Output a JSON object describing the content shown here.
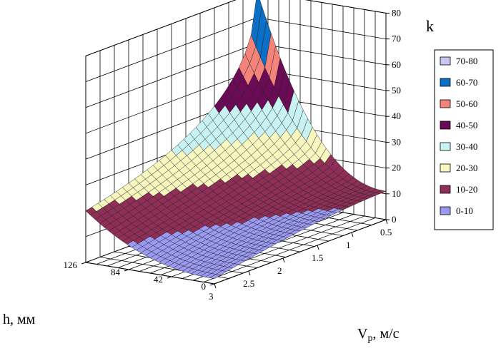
{
  "chart_data": {
    "type": "surface",
    "title": "",
    "xlabel": "h, мм",
    "ylabel_main": "V",
    "ylabel_sub": "p",
    "ylabel_unit": ", м/с",
    "zlabel": "k",
    "h_ticks": [
      "0",
      "42",
      "84",
      "126"
    ],
    "v_ticks": [
      "0.5",
      "1",
      "1.5",
      "2",
      "2.5",
      "3"
    ],
    "z_ticks": [
      "0",
      "10",
      "20",
      "30",
      "40",
      "50",
      "60",
      "70",
      "80"
    ],
    "h_range": [
      0,
      126
    ],
    "v_range": [
      0.5,
      3
    ],
    "z_range": [
      0,
      80
    ],
    "grid": true,
    "legend_position": "right",
    "legend": [
      {
        "label": "70-80",
        "color": "#c8c8ef"
      },
      {
        "label": "60-70",
        "color": "#0a6fc6"
      },
      {
        "label": "50-60",
        "color": "#f4847a"
      },
      {
        "label": "40-50",
        "color": "#6b0a55"
      },
      {
        "label": "30-40",
        "color": "#c9f3f3"
      },
      {
        "label": "20-30",
        "color": "#f7f7bf"
      },
      {
        "label": "10-20",
        "color": "#8f2e57"
      },
      {
        "label": "0-10",
        "color": "#9a9af2"
      }
    ],
    "corner_values": {
      "h0_v0.5": 11,
      "h126_v0.5": 80,
      "h126_v3": 20,
      "h0_v3": 2
    }
  }
}
